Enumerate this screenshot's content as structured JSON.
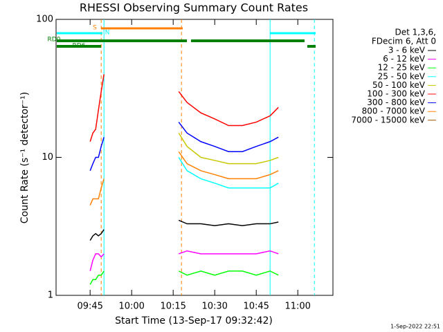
{
  "chart_data": {
    "type": "line",
    "title": "RHESSI Observing Summary Count Rates",
    "subtitle": [
      "Det 1,3,6,",
      "FDecim 6, Att 0"
    ],
    "x_label": "Start Time (13-Sep-17 09:32:42)",
    "y_label": "Count Rate (s⁻¹ detector⁻¹)",
    "footer": "1-Sep-2022 22:51",
    "log_y": true,
    "ylim": [
      1,
      100
    ],
    "yticks": [
      1,
      10,
      100
    ],
    "xlim": [
      "09:32:42",
      "11:12:42"
    ],
    "xticks": [
      "09:45",
      "10:00",
      "10:15",
      "10:30",
      "10:45",
      "11:00"
    ],
    "annotations": [
      "S",
      "N",
      "RD0",
      "RD6"
    ],
    "vlines": [
      {
        "x": "09:49",
        "color": "#ff8000",
        "dash": true
      },
      {
        "x": "09:50",
        "color": "#00ffff",
        "dash": false
      },
      {
        "x": "10:18",
        "color": "#ff8000",
        "dash": true
      },
      {
        "x": "10:50",
        "color": "#00ffff",
        "dash": false
      },
      {
        "x": "11:06",
        "color": "#00ffff",
        "dash": true
      }
    ],
    "x": [
      "09:45",
      "09:46",
      "09:47",
      "09:48",
      "09:49",
      "09:50",
      "10:00",
      "10:17",
      "10:20",
      "10:25",
      "10:30",
      "10:35",
      "10:40",
      "10:45",
      "10:50",
      "10:53"
    ],
    "series": [
      {
        "name": "3 - 6 keV",
        "color": "#000000",
        "values": [
          2.5,
          2.7,
          2.8,
          2.7,
          2.8,
          3,
          null,
          3.5,
          3.3,
          3.3,
          3.2,
          3.3,
          3.2,
          3.3,
          3.3,
          3.4
        ]
      },
      {
        "name": "6 - 12 keV",
        "color": "#ff00ff",
        "values": [
          1.5,
          1.8,
          2,
          2,
          1.9,
          2,
          null,
          2,
          2.1,
          2,
          2,
          2,
          2,
          2,
          2.1,
          2
        ]
      },
      {
        "name": "12 - 25 keV",
        "color": "#00ff00",
        "values": [
          1.2,
          1.3,
          1.3,
          1.4,
          1.4,
          1.5,
          null,
          1.5,
          1.4,
          1.5,
          1.4,
          1.5,
          1.5,
          1.4,
          1.5,
          1.4
        ]
      },
      {
        "name": "25 - 50 keV",
        "color": "#00ffff",
        "values": [
          null,
          null,
          null,
          null,
          null,
          null,
          null,
          10,
          8,
          7,
          6.5,
          6,
          6,
          6,
          6,
          6.5
        ]
      },
      {
        "name": "50 - 100 keV",
        "color": "#c8c800",
        "values": [
          null,
          null,
          null,
          null,
          null,
          null,
          null,
          15,
          12,
          10,
          9.5,
          9,
          9,
          9,
          9.5,
          10
        ]
      },
      {
        "name": "100 - 300 keV",
        "color": "#ff0000",
        "values": [
          13,
          15,
          16,
          22,
          30,
          40,
          null,
          30,
          25,
          21,
          19,
          17,
          17,
          18,
          20,
          23
        ]
      },
      {
        "name": "300 - 800 keV",
        "color": "#0000ff",
        "values": [
          8,
          9,
          10,
          10,
          12,
          14,
          null,
          18,
          15,
          13,
          12,
          11,
          11,
          12,
          13,
          14
        ]
      },
      {
        "name": "800 - 7000 keV",
        "color": "#ff8000",
        "values": [
          4.5,
          5,
          5,
          5,
          6,
          7,
          null,
          11,
          9,
          8,
          7.5,
          7,
          7,
          7,
          7.5,
          8
        ]
      },
      {
        "name": "7000 - 15000 keV",
        "color": "#a05000",
        "values": [
          null,
          null,
          null,
          null,
          null,
          null,
          null,
          null,
          null,
          null,
          null,
          null,
          null,
          null,
          null,
          null
        ]
      }
    ]
  }
}
